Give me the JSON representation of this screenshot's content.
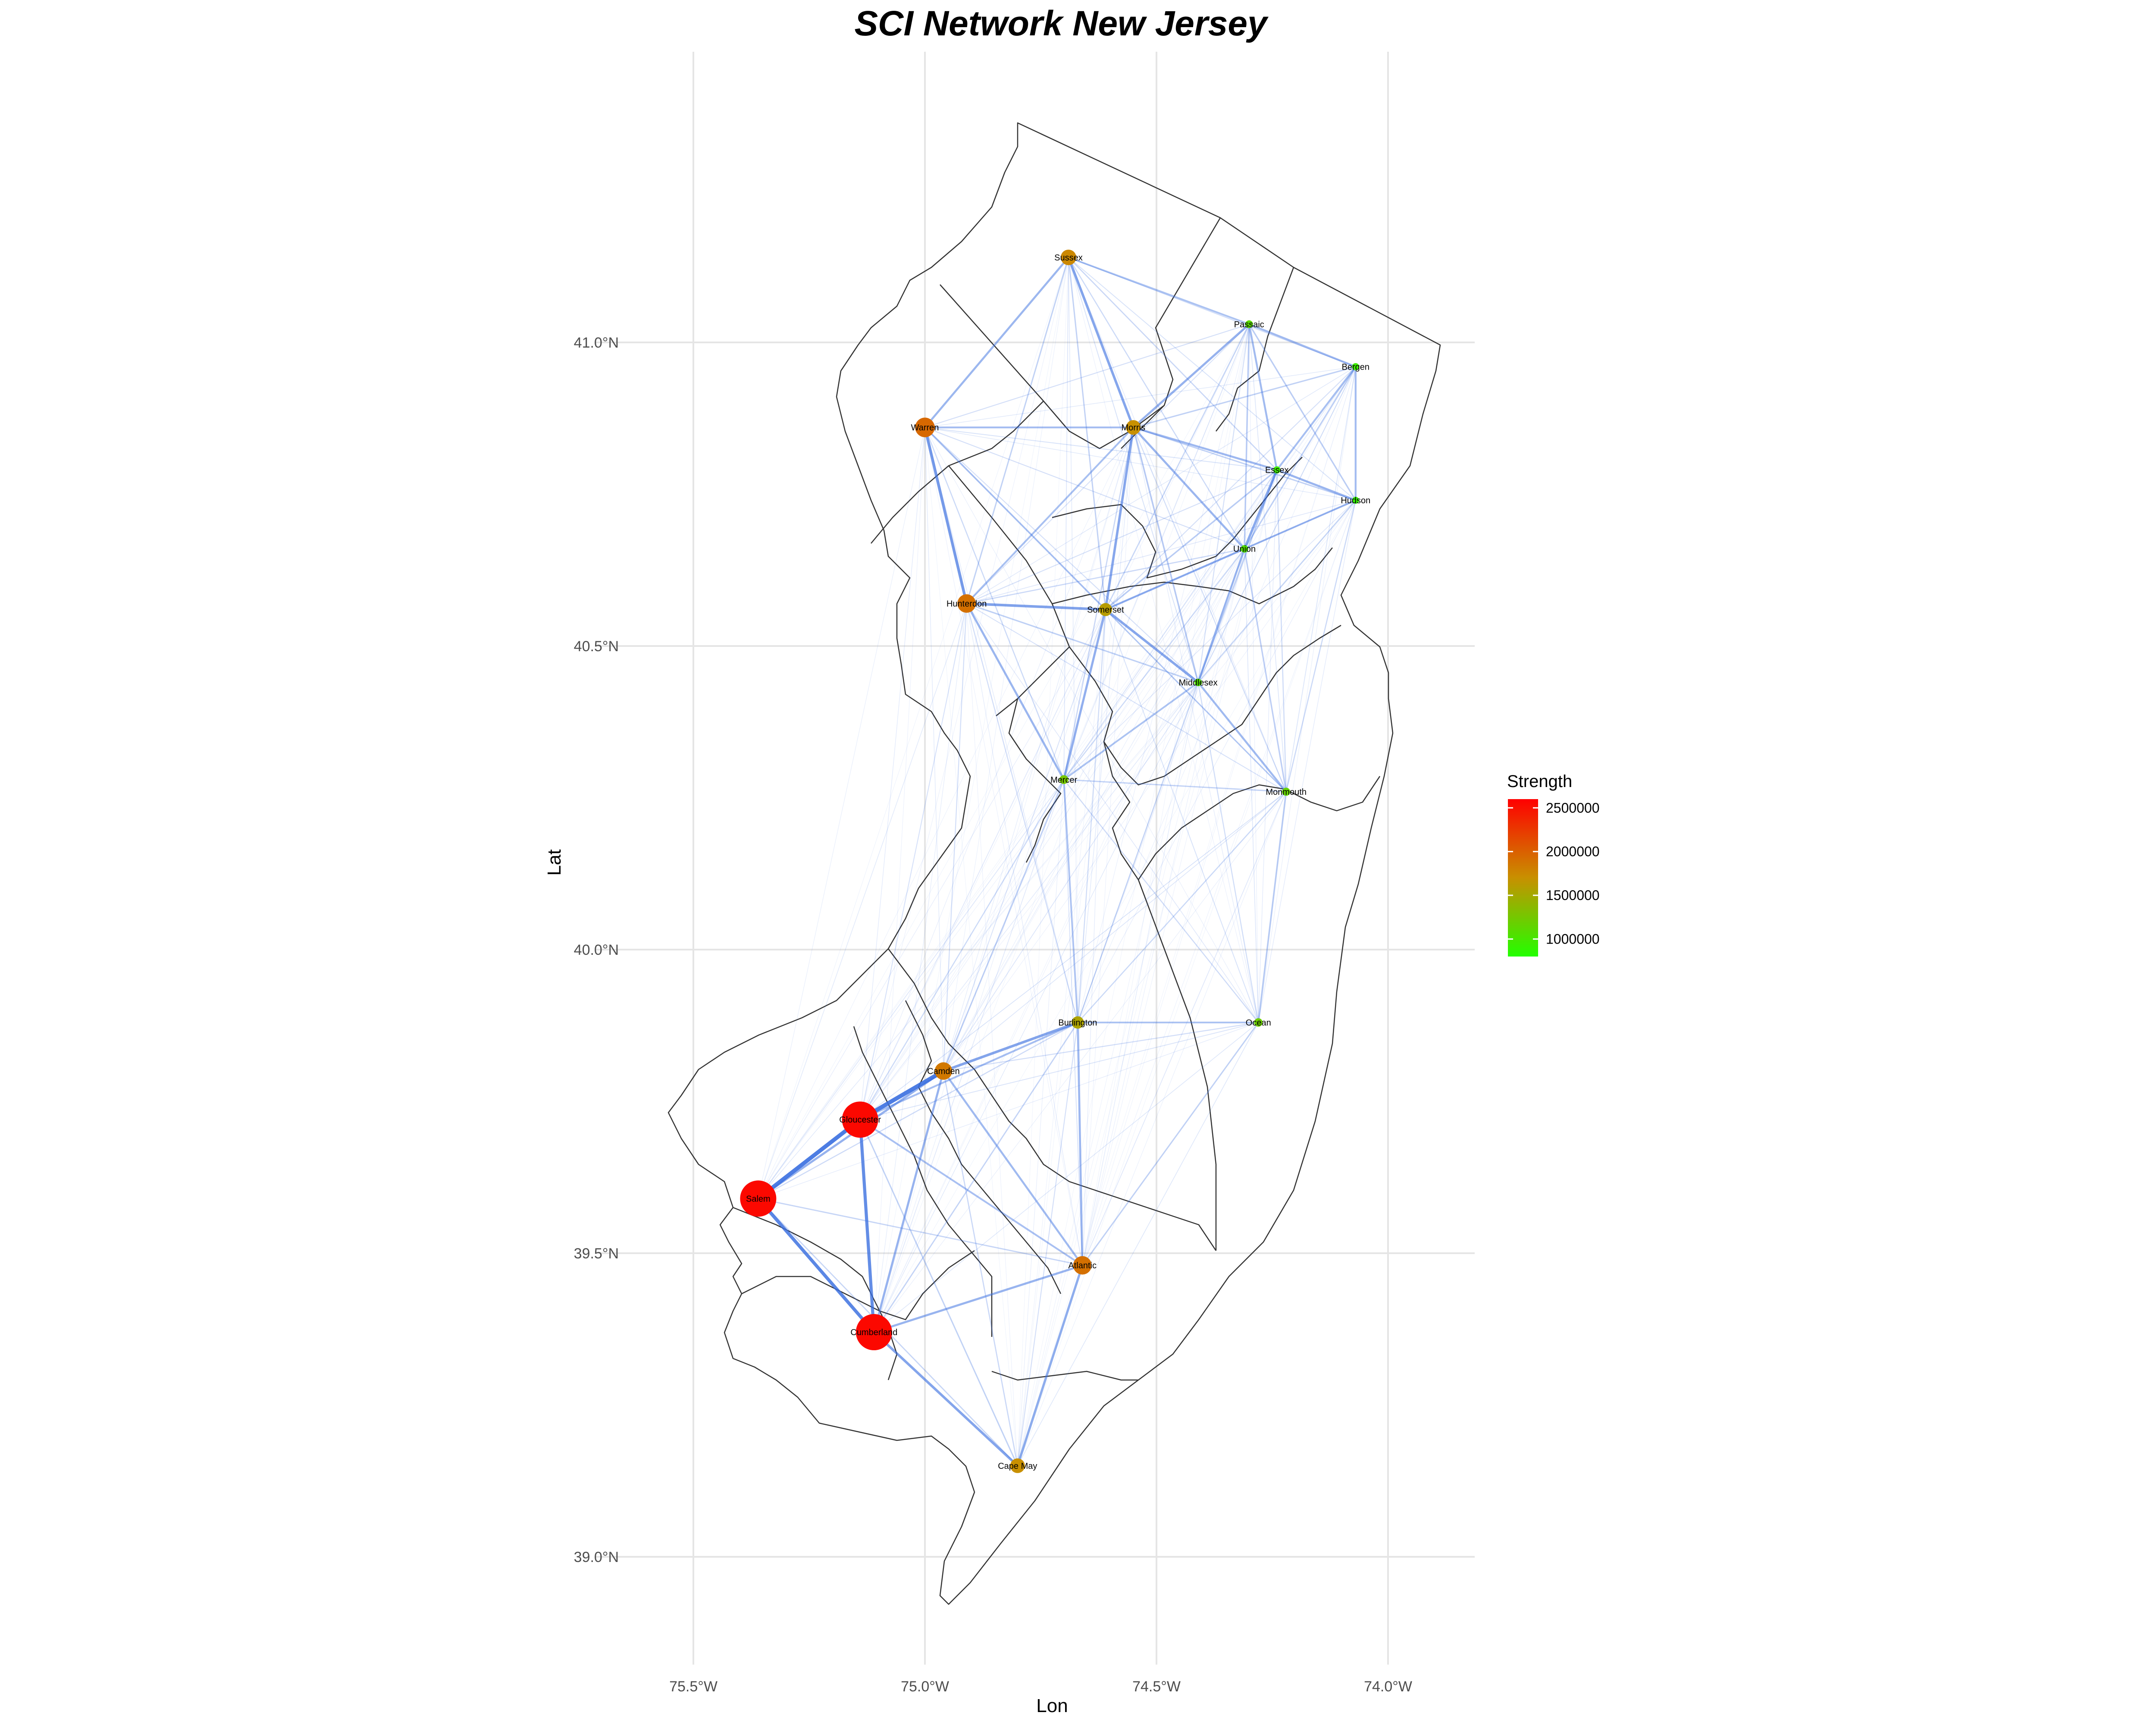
{
  "title": "SCI Network New Jersey",
  "x_axis_title": "Lon",
  "y_axis_title": "Lat",
  "x_ticks": [
    {
      "value": -75.5,
      "label": "75.5°W"
    },
    {
      "value": -75.0,
      "label": "75.0°W"
    },
    {
      "value": -74.5,
      "label": "74.5°W"
    },
    {
      "value": -74.0,
      "label": "74.0°W"
    }
  ],
  "y_ticks": [
    {
      "value": 39.0,
      "label": "39.0°N"
    },
    {
      "value": 39.5,
      "label": "39.5°N"
    },
    {
      "value": 40.0,
      "label": "40.0°N"
    },
    {
      "value": 40.5,
      "label": "40.5°N"
    },
    {
      "value": 41.0,
      "label": "41.0°N"
    }
  ],
  "colors": {
    "edge": "#3a6fe0",
    "strength_low": "#22ff00",
    "strength_mid": "#c89000",
    "strength_high": "#ff0000",
    "county_border": "#333333",
    "grid": "#e5e5e5"
  },
  "legend": {
    "title": "Strength",
    "placement": "right",
    "min": 800000,
    "max": 2600000,
    "ticks": [
      {
        "value": 1000000,
        "label": "1000000"
      },
      {
        "value": 1500000,
        "label": "1500000"
      },
      {
        "value": 2000000,
        "label": "2000000"
      },
      {
        "value": 2500000,
        "label": "2500000"
      }
    ]
  },
  "nodes": [
    {
      "name": "Sussex",
      "lon": -74.69,
      "lat": 41.14,
      "strength": 1750000
    },
    {
      "name": "Passaic",
      "lon": -74.3,
      "lat": 41.03,
      "strength": 1100000
    },
    {
      "name": "Bergen",
      "lon": -74.07,
      "lat": 40.96,
      "strength": 950000
    },
    {
      "name": "Warren",
      "lon": -75.0,
      "lat": 40.86,
      "strength": 1950000
    },
    {
      "name": "Morris",
      "lon": -74.55,
      "lat": 40.86,
      "strength": 1700000
    },
    {
      "name": "Essex",
      "lon": -74.24,
      "lat": 40.79,
      "strength": 950000
    },
    {
      "name": "Hudson",
      "lon": -74.07,
      "lat": 40.74,
      "strength": 900000
    },
    {
      "name": "Union",
      "lon": -74.31,
      "lat": 40.66,
      "strength": 1050000
    },
    {
      "name": "Hunterdon",
      "lon": -74.91,
      "lat": 40.57,
      "strength": 1900000
    },
    {
      "name": "Somerset",
      "lon": -74.61,
      "lat": 40.56,
      "strength": 1600000
    },
    {
      "name": "Middlesex",
      "lon": -74.41,
      "lat": 40.44,
      "strength": 1050000
    },
    {
      "name": "Mercer",
      "lon": -74.7,
      "lat": 40.28,
      "strength": 1250000
    },
    {
      "name": "Monmouth",
      "lon": -74.22,
      "lat": 40.26,
      "strength": 1150000
    },
    {
      "name": "Burlington",
      "lon": -74.67,
      "lat": 39.88,
      "strength": 1550000
    },
    {
      "name": "Ocean",
      "lon": -74.28,
      "lat": 39.88,
      "strength": 1200000
    },
    {
      "name": "Camden",
      "lon": -74.96,
      "lat": 39.8,
      "strength": 1850000
    },
    {
      "name": "Gloucester",
      "lon": -75.14,
      "lat": 39.72,
      "strength": 2550000
    },
    {
      "name": "Salem",
      "lon": -75.36,
      "lat": 39.59,
      "strength": 2550000
    },
    {
      "name": "Atlantic",
      "lon": -74.66,
      "lat": 39.48,
      "strength": 1900000
    },
    {
      "name": "Cumberland",
      "lon": -75.11,
      "lat": 39.37,
      "strength": 2550000
    },
    {
      "name": "Cape May",
      "lon": -74.8,
      "lat": 39.15,
      "strength": 1700000
    }
  ]
}
